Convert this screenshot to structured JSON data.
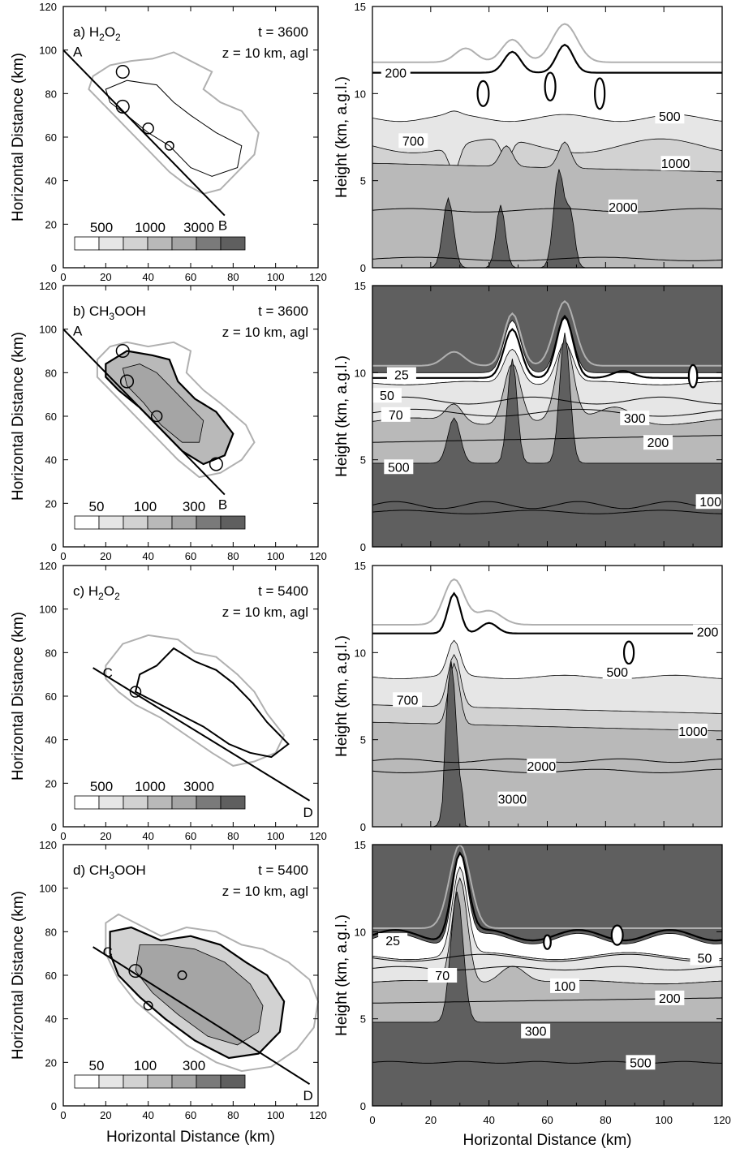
{
  "colors": {
    "white": "#ffffff",
    "fill1": "#e6e6e6",
    "fill2": "#d2d2d2",
    "fill3": "#b9b9b9",
    "fill4": "#a5a5a5",
    "fill5": "#7a7a7a",
    "fill6": "#5f5f5f",
    "cloud_outline": "#b0b0b0",
    "ink": "#000000"
  },
  "panels": [
    {
      "left": {
        "title_prefix": "a) H",
        "title_sub1": "2",
        "title_mid": "O",
        "title_sub2": "2",
        "time_label": "t = 3600",
        "height_label": "z = 10 km, agl",
        "xlabel": "",
        "ylabel": "Horizontal Distance (km)",
        "xticks": [
          "0",
          "20",
          "40",
          "60",
          "80",
          "100",
          "120"
        ],
        "yticks": [
          "0",
          "20",
          "40",
          "60",
          "80",
          "100",
          "120"
        ],
        "xlim": [
          0,
          120
        ],
        "ylim": [
          0,
          120
        ],
        "section_start_label": "A",
        "section_end_label": "B",
        "section_line": [
          [
            0,
            100
          ],
          [
            76,
            24
          ]
        ],
        "legend_labels": [
          "500",
          "1000",
          "3000"
        ]
      },
      "right": {
        "xlabel": "",
        "ylabel": "Height (km, a.g.l.)",
        "xticks": [
          "0",
          "20",
          "40",
          "60",
          "80",
          "100",
          "120"
        ],
        "yticks": [
          "0",
          "5",
          "10",
          "15"
        ],
        "xlim": [
          0,
          120
        ],
        "ylim": [
          0,
          15
        ],
        "contour_labels": [
          "200",
          "500",
          "700",
          "1000",
          "2000"
        ]
      }
    },
    {
      "left": {
        "title_prefix": "b) CH",
        "title_sub1": "3",
        "title_mid": "OOH",
        "title_sub2": "",
        "time_label": "t = 3600",
        "height_label": "z = 10 km, agl",
        "xlabel": "",
        "ylabel": "Horizontal Distance (km)",
        "xticks": [
          "0",
          "20",
          "40",
          "60",
          "80",
          "100",
          "120"
        ],
        "yticks": [
          "0",
          "20",
          "40",
          "60",
          "80",
          "100",
          "120"
        ],
        "xlim": [
          0,
          120
        ],
        "ylim": [
          0,
          120
        ],
        "section_start_label": "A",
        "section_end_label": "B",
        "section_line": [
          [
            0,
            100
          ],
          [
            76,
            24
          ]
        ],
        "legend_labels": [
          "50",
          "100",
          "300"
        ]
      },
      "right": {
        "xlabel": "",
        "ylabel": "Height (km, a.g.l.)",
        "xticks": [
          "0",
          "20",
          "40",
          "60",
          "80",
          "100",
          "120"
        ],
        "yticks": [
          "0",
          "5",
          "10",
          "15"
        ],
        "xlim": [
          0,
          120
        ],
        "ylim": [
          0,
          15
        ],
        "contour_labels": [
          "25",
          "50",
          "70",
          "100",
          "200",
          "300",
          "500"
        ]
      }
    },
    {
      "left": {
        "title_prefix": "c) H",
        "title_sub1": "2",
        "title_mid": "O",
        "title_sub2": "2",
        "time_label": "t = 5400",
        "height_label": "z = 10 km, agl",
        "xlabel": "",
        "ylabel": "Horizontal Distance (km)",
        "xticks": [
          "0",
          "20",
          "40",
          "60",
          "80",
          "100",
          "120"
        ],
        "yticks": [
          "0",
          "20",
          "40",
          "60",
          "80",
          "100",
          "120"
        ],
        "xlim": [
          0,
          120
        ],
        "ylim": [
          0,
          120
        ],
        "section_start_label": "C",
        "section_end_label": "D",
        "section_line": [
          [
            14,
            73
          ],
          [
            116,
            12
          ]
        ],
        "legend_labels": [
          "500",
          "1000",
          "3000"
        ]
      },
      "right": {
        "xlabel": "",
        "ylabel": "Height (km, a.g.l.)",
        "xticks": [
          "0",
          "20",
          "40",
          "60",
          "80",
          "100",
          "120"
        ],
        "yticks": [
          "0",
          "5",
          "10",
          "15"
        ],
        "xlim": [
          0,
          120
        ],
        "ylim": [
          0,
          15
        ],
        "contour_labels": [
          "200",
          "500",
          "700",
          "1000",
          "2000",
          "3000"
        ]
      }
    },
    {
      "left": {
        "title_prefix": "d) CH",
        "title_sub1": "3",
        "title_mid": "OOH",
        "title_sub2": "",
        "time_label": "t = 5400",
        "height_label": "z = 10 km, agl",
        "xlabel": "Horizontal Distance (km)",
        "ylabel": "Horizontal Distance (km)",
        "xticks": [
          "0",
          "20",
          "40",
          "60",
          "80",
          "100",
          "120"
        ],
        "yticks": [
          "0",
          "20",
          "40",
          "60",
          "80",
          "100",
          "120"
        ],
        "xlim": [
          0,
          120
        ],
        "ylim": [
          0,
          120
        ],
        "section_start_label": "C",
        "section_end_label": "D",
        "section_line": [
          [
            14,
            73
          ],
          [
            116,
            10
          ]
        ],
        "legend_labels": [
          "50",
          "100",
          "300"
        ]
      },
      "right": {
        "xlabel": "Horizontal Distance (km)",
        "ylabel": "Height (km, a.g.l.)",
        "xticks": [
          "0",
          "20",
          "40",
          "60",
          "80",
          "100",
          "120"
        ],
        "yticks": [
          "0",
          "5",
          "10",
          "15"
        ],
        "xlim": [
          0,
          120
        ],
        "ylim": [
          0,
          15
        ],
        "contour_labels": [
          "25",
          "50",
          "70",
          "100",
          "200",
          "300",
          "500"
        ]
      }
    }
  ],
  "chart_data": [
    {
      "type": "heatmap",
      "panel": "a-left",
      "title": "a) H2O2",
      "time": "t = 3600",
      "level": "z = 10 km, agl",
      "ylabel": "Horizontal Distance (km)",
      "xlim": [
        0,
        120
      ],
      "ylim": [
        0,
        120
      ],
      "legend_levels": [
        500,
        1000,
        3000
      ],
      "section": {
        "from": "A",
        "to": "B",
        "start": [
          0,
          100
        ],
        "end": [
          76,
          24
        ]
      }
    },
    {
      "type": "heatmap",
      "panel": "a-right",
      "ylabel": "Height (km, a.g.l.)",
      "xlim": [
        0,
        120
      ],
      "ylim": [
        0,
        15
      ],
      "contour_levels": [
        200,
        500,
        700,
        1000,
        2000
      ]
    },
    {
      "type": "heatmap",
      "panel": "b-left",
      "title": "b) CH3OOH",
      "time": "t = 3600",
      "level": "z = 10 km, agl",
      "ylabel": "Horizontal Distance (km)",
      "xlim": [
        0,
        120
      ],
      "ylim": [
        0,
        120
      ],
      "legend_levels": [
        50,
        100,
        300
      ],
      "section": {
        "from": "A",
        "to": "B",
        "start": [
          0,
          100
        ],
        "end": [
          76,
          24
        ]
      }
    },
    {
      "type": "heatmap",
      "panel": "b-right",
      "ylabel": "Height (km, a.g.l.)",
      "xlim": [
        0,
        120
      ],
      "ylim": [
        0,
        15
      ],
      "contour_levels": [
        25,
        50,
        70,
        100,
        200,
        300,
        500
      ]
    },
    {
      "type": "heatmap",
      "panel": "c-left",
      "title": "c) H2O2",
      "time": "t = 5400",
      "level": "z = 10 km, agl",
      "ylabel": "Horizontal Distance (km)",
      "xlim": [
        0,
        120
      ],
      "ylim": [
        0,
        120
      ],
      "legend_levels": [
        500,
        1000,
        3000
      ],
      "section": {
        "from": "C",
        "to": "D",
        "start": [
          14,
          73
        ],
        "end": [
          116,
          12
        ]
      }
    },
    {
      "type": "heatmap",
      "panel": "c-right",
      "ylabel": "Height (km, a.g.l.)",
      "xlim": [
        0,
        120
      ],
      "ylim": [
        0,
        15
      ],
      "contour_levels": [
        200,
        500,
        700,
        1000,
        2000,
        3000
      ]
    },
    {
      "type": "heatmap",
      "panel": "d-left",
      "title": "d) CH3OOH",
      "time": "t = 5400",
      "level": "z = 10 km, agl",
      "xlabel": "Horizontal Distance (km)",
      "ylabel": "Horizontal Distance (km)",
      "xlim": [
        0,
        120
      ],
      "ylim": [
        0,
        120
      ],
      "legend_levels": [
        50,
        100,
        300
      ],
      "section": {
        "from": "C",
        "to": "D",
        "start": [
          14,
          73
        ],
        "end": [
          116,
          10
        ]
      }
    },
    {
      "type": "heatmap",
      "panel": "d-right",
      "xlabel": "Horizontal Distance (km)",
      "ylabel": "Height (km, a.g.l.)",
      "xlim": [
        0,
        120
      ],
      "ylim": [
        0,
        15
      ],
      "contour_levels": [
        25,
        50,
        70,
        100,
        200,
        300,
        500
      ]
    }
  ]
}
